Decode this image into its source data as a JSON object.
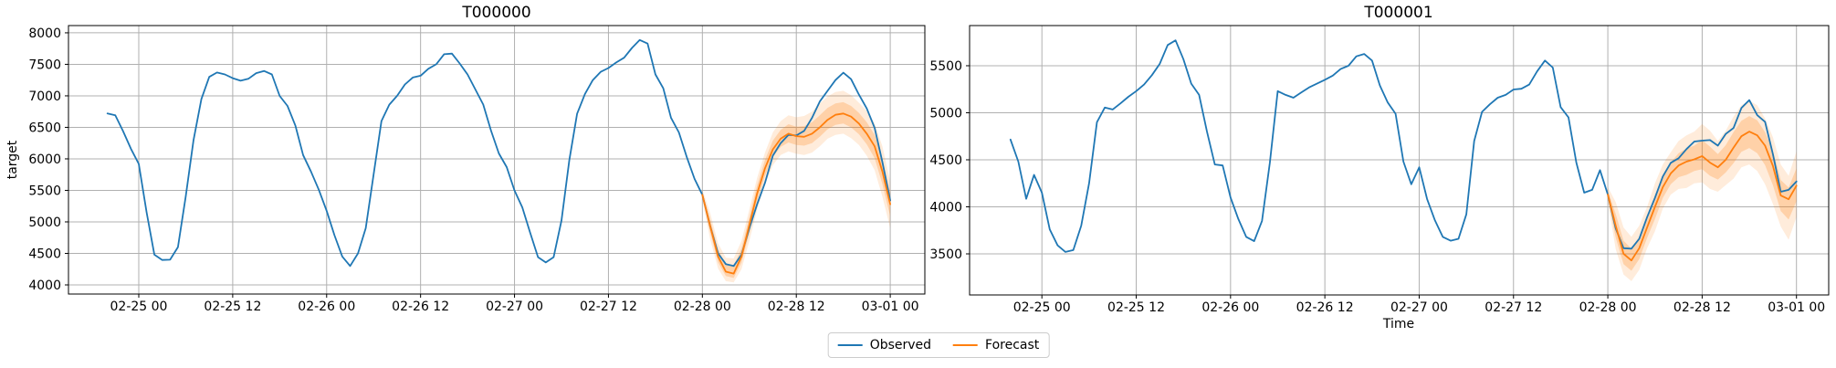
{
  "figure": {
    "kind": "matplotlib-figure",
    "background": "#ffffff",
    "axes_color": "#000000",
    "grid_color": "#b0b0b0",
    "tick_label_size": 14,
    "title_size": 17
  },
  "legend": {
    "items": [
      {
        "label": "Observed",
        "color": "#1f77b4"
      },
      {
        "label": "Forecast",
        "color": "#ff7f0e"
      }
    ]
  },
  "chart_data": [
    {
      "type": "line",
      "title": "T000000",
      "xlabel": "",
      "ylabel": "target",
      "grid": true,
      "xlim_hours": [
        -8.98,
        100.42
      ],
      "ylim": [
        3855,
        8115
      ],
      "x_tick_hours": [
        0,
        12,
        24,
        36,
        48,
        60,
        72,
        84,
        96
      ],
      "x_tick_labels": [
        "02-25 00",
        "02-25 12",
        "02-26 00",
        "02-26 12",
        "02-27 00",
        "02-27 12",
        "02-28 00",
        "02-28 12",
        "03-01 00"
      ],
      "y_ticks": [
        4000,
        4500,
        5000,
        5500,
        6000,
        6500,
        7000,
        7500,
        8000
      ],
      "series": [
        {
          "name": "Observed",
          "color": "#1f77b4",
          "width": 1.8,
          "x_start_hour": -4,
          "step_hours": 1,
          "values": [
            6720,
            6690,
            6440,
            6160,
            5920,
            5150,
            4480,
            4395,
            4400,
            4600,
            5400,
            6300,
            6950,
            7300,
            7370,
            7340,
            7280,
            7240,
            7270,
            7360,
            7395,
            7340,
            7000,
            6840,
            6530,
            6060,
            5800,
            5510,
            5175,
            4790,
            4450,
            4300,
            4500,
            4900,
            5750,
            6600,
            6860,
            7000,
            7180,
            7290,
            7320,
            7430,
            7500,
            7660,
            7670,
            7513,
            7340,
            7100,
            6861,
            6449,
            6087,
            5869,
            5500,
            5230,
            4827,
            4440,
            4357,
            4440,
            5021,
            5980,
            6716,
            7030,
            7250,
            7380,
            7441,
            7530,
            7605,
            7760,
            7886,
            7830,
            7340,
            7120,
            6650,
            6420,
            6030,
            5680,
            5430,
            4930,
            4500,
            4330,
            4300,
            4480,
            4900,
            5280,
            5620,
            6050,
            6250,
            6380,
            6370,
            6444,
            6650,
            6910,
            7080,
            7250,
            7367,
            7265,
            7020,
            6800,
            6490,
            5950,
            5340
          ]
        },
        {
          "name": "Forecast",
          "color": "#ff7f0e",
          "width": 1.8,
          "x_start_hour": 72,
          "step_hours": 1,
          "values": [
            5430,
            4930,
            4450,
            4210,
            4180,
            4450,
            4950,
            5450,
            5850,
            6150,
            6320,
            6400,
            6360,
            6350,
            6400,
            6500,
            6620,
            6700,
            6720,
            6670,
            6560,
            6400,
            6200,
            5800,
            5280
          ]
        }
      ],
      "bands": [
        {
          "name": "90% prediction interval",
          "color": "#ff7f0e",
          "opacity": 0.15,
          "x_start_hour": 72,
          "step_hours": 1,
          "lower": [
            5350,
            4720,
            4260,
            4060,
            4040,
            4250,
            4700,
            5200,
            5600,
            5900,
            6060,
            6120,
            6080,
            6060,
            6100,
            6200,
            6320,
            6380,
            6400,
            6330,
            6220,
            6050,
            5820,
            5400,
            4900
          ],
          "upper": [
            5510,
            5140,
            4660,
            4430,
            4420,
            4700,
            5200,
            5700,
            6100,
            6420,
            6600,
            6690,
            6660,
            6680,
            6750,
            6880,
            6990,
            7060,
            7080,
            7010,
            6890,
            6760,
            6560,
            6200,
            5640
          ]
        },
        {
          "name": "50% prediction interval",
          "color": "#ff7f0e",
          "opacity": 0.25,
          "x_start_hour": 72,
          "step_hours": 1,
          "lower": [
            5390,
            4830,
            4360,
            4140,
            4110,
            4350,
            4830,
            5330,
            5730,
            6030,
            6190,
            6260,
            6220,
            6210,
            6250,
            6350,
            6470,
            6540,
            6560,
            6500,
            6390,
            6230,
            6010,
            5600,
            5090
          ],
          "upper": [
            5470,
            5040,
            4560,
            4320,
            4300,
            4580,
            5080,
            5580,
            5980,
            6290,
            6460,
            6550,
            6510,
            6520,
            6580,
            6690,
            6810,
            6880,
            6900,
            6840,
            6730,
            6580,
            6380,
            6000,
            5460
          ]
        }
      ]
    },
    {
      "type": "line",
      "title": "T000001",
      "xlabel": "Time",
      "ylabel": "",
      "grid": true,
      "xlim_hours": [
        -9.2,
        100.1
      ],
      "ylim": [
        3063,
        5927
      ],
      "x_tick_hours": [
        0,
        12,
        24,
        36,
        48,
        60,
        72,
        84,
        96
      ],
      "x_tick_labels": [
        "02-25 00",
        "02-25 12",
        "02-26 00",
        "02-26 12",
        "02-27 00",
        "02-27 12",
        "02-28 00",
        "02-28 12",
        "03-01 00"
      ],
      "y_ticks": [
        3500,
        4000,
        4500,
        5000,
        5500
      ],
      "series": [
        {
          "name": "Observed",
          "color": "#1f77b4",
          "width": 1.8,
          "x_start_hour": -4,
          "step_hours": 1,
          "values": [
            4715,
            4480,
            4085,
            4340,
            4150,
            3760,
            3590,
            3520,
            3540,
            3800,
            4250,
            4900,
            5055,
            5035,
            5100,
            5170,
            5230,
            5300,
            5400,
            5520,
            5720,
            5770,
            5570,
            5310,
            5190,
            4800,
            4450,
            4440,
            4100,
            3870,
            3680,
            3635,
            3850,
            4470,
            5230,
            5190,
            5160,
            5215,
            5270,
            5310,
            5350,
            5395,
            5465,
            5500,
            5600,
            5625,
            5555,
            5290,
            5110,
            4989,
            4480,
            4240,
            4420,
            4083,
            3856,
            3680,
            3640,
            3660,
            3920,
            4700,
            5010,
            5090,
            5160,
            5190,
            5247,
            5255,
            5300,
            5440,
            5555,
            5480,
            5060,
            4950,
            4470,
            4150,
            4180,
            4390,
            4130,
            3772,
            3560,
            3555,
            3660,
            3890,
            4095,
            4322,
            4468,
            4516,
            4613,
            4694,
            4704,
            4710,
            4650,
            4775,
            4839,
            5050,
            5135,
            4975,
            4904,
            4560,
            4160,
            4180,
            4270
          ]
        },
        {
          "name": "Forecast",
          "color": "#ff7f0e",
          "width": 1.8,
          "x_start_hour": 72,
          "step_hours": 1,
          "values": [
            4130,
            3800,
            3500,
            3430,
            3560,
            3780,
            4000,
            4210,
            4355,
            4440,
            4480,
            4505,
            4540,
            4470,
            4420,
            4500,
            4630,
            4750,
            4800,
            4760,
            4650,
            4435,
            4120,
            4080,
            4225
          ]
        }
      ],
      "bands": [
        {
          "name": "90% prediction interval",
          "color": "#ff7f0e",
          "opacity": 0.15,
          "x_start_hour": 72,
          "step_hours": 1,
          "lower": [
            4050,
            3550,
            3280,
            3210,
            3330,
            3560,
            3740,
            3980,
            4130,
            4190,
            4200,
            4250,
            4260,
            4190,
            4160,
            4230,
            4300,
            4420,
            4450,
            4380,
            4240,
            4030,
            3790,
            3650,
            3890
          ],
          "upper": [
            4210,
            4050,
            3780,
            3680,
            3800,
            4000,
            4250,
            4450,
            4580,
            4700,
            4760,
            4800,
            4880,
            4810,
            4700,
            4810,
            4960,
            5080,
            5130,
            5080,
            4940,
            4740,
            4450,
            4330,
            4590
          ]
        },
        {
          "name": "50% prediction interval",
          "color": "#ff7f0e",
          "opacity": 0.25,
          "x_start_hour": 72,
          "step_hours": 1,
          "lower": [
            4090,
            3675,
            3390,
            3320,
            3445,
            3670,
            3870,
            4095,
            4240,
            4315,
            4340,
            4380,
            4400,
            4330,
            4290,
            4365,
            4465,
            4585,
            4625,
            4570,
            4445,
            4230,
            3955,
            3865,
            4060
          ],
          "upper": [
            4170,
            3925,
            3640,
            3555,
            3680,
            3890,
            4125,
            4330,
            4470,
            4570,
            4620,
            4650,
            4710,
            4640,
            4560,
            4655,
            4795,
            4915,
            4965,
            4920,
            4795,
            4590,
            4285,
            4205,
            4410
          ]
        }
      ]
    }
  ]
}
